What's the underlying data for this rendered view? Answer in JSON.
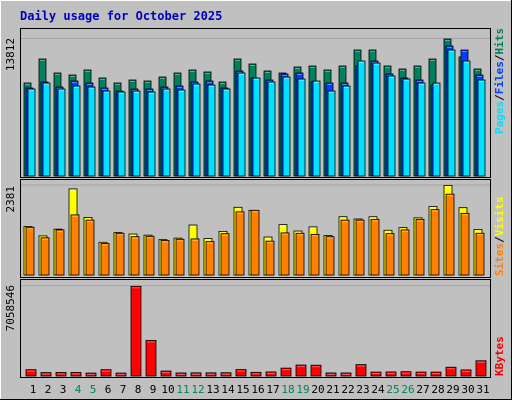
{
  "colors": {
    "background": "#c0c0c0",
    "title": "#0000c0",
    "hits": "#00805c",
    "files": "#0040ff",
    "pages": "#00e0ff",
    "visits": "#ffff00",
    "sites": "#ff8000",
    "kbytes": "#ff0000",
    "weekend_day": "#00805c",
    "weekday": "#000000"
  },
  "chart_data": {
    "type": "bar",
    "title": "Daily usage for October 2025",
    "days": [
      "1",
      "2",
      "3",
      "4",
      "5",
      "6",
      "7",
      "8",
      "9",
      "10",
      "11",
      "12",
      "13",
      "14",
      "15",
      "16",
      "17",
      "18",
      "19",
      "20",
      "21",
      "22",
      "23",
      "24",
      "25",
      "26",
      "27",
      "28",
      "29",
      "30",
      "31"
    ],
    "weekend_days": [
      "4",
      "5",
      "11",
      "12",
      "18",
      "19",
      "25",
      "26"
    ],
    "panels": [
      {
        "name": "hits-files-pages",
        "y_label": "13812",
        "legend": [
          "Pages",
          "/",
          "Files",
          "/",
          "Hits"
        ],
        "ylim": [
          0,
          14600
        ],
        "series": [
          {
            "name": "Hits",
            "values": [
              9300,
              11700,
              10300,
              10100,
              10600,
              9800,
              9300,
              9600,
              9500,
              9900,
              10300,
              10600,
              10400,
              9400,
              11700,
              11200,
              10500,
              10300,
              10900,
              11000,
              10600,
              11000,
              12600,
              12600,
              11000,
              10700,
              11000,
              11700,
              13700,
              11900,
              10700
            ]
          },
          {
            "name": "Files",
            "values": [
              8800,
              9400,
              8900,
              9500,
              9300,
              8800,
              8500,
              8700,
              8700,
              8900,
              9000,
              9400,
              9500,
              8800,
              10500,
              9800,
              9600,
              10200,
              10300,
              9400,
              9300,
              9300,
              11000,
              11500,
              10200,
              9800,
              9600,
              9100,
              13000,
              12600,
              10100
            ]
          },
          {
            "name": "Pages",
            "values": [
              8700,
              9300,
              8700,
              9000,
              8900,
              8500,
              8400,
              8500,
              8400,
              8700,
              8600,
              9200,
              9100,
              8700,
              10300,
              9800,
              9400,
              9900,
              9700,
              9500,
              8500,
              9000,
              11500,
              11300,
              10000,
              9700,
              9300,
              9300,
              12600,
              11500,
              9600
            ]
          }
        ]
      },
      {
        "name": "visits-sites",
        "y_label": "2381",
        "legend": [
          "Sites",
          "/",
          "Visits"
        ],
        "ylim": [
          0,
          2500
        ],
        "series": [
          {
            "name": "Visits",
            "values": [
              1290,
              1040,
              1220,
              2290,
              1530,
              870,
              1130,
              1090,
              1060,
              940,
              980,
              1330,
              970,
              1160,
              1800,
              1720,
              1010,
              1340,
              1170,
              1280,
              1050,
              1550,
              1490,
              1550,
              1190,
              1260,
              1520,
              1820,
              2380,
              1790,
              1210
            ]
          },
          {
            "name": "Sites",
            "values": [
              1270,
              990,
              1200,
              1600,
              1460,
              840,
              1110,
              1020,
              1030,
              920,
              950,
              960,
              890,
              1100,
              1680,
              1720,
              900,
              1120,
              1110,
              1080,
              1020,
              1460,
              1460,
              1480,
              1100,
              1200,
              1480,
              1740,
              2150,
              1640,
              1110
            ]
          }
        ]
      },
      {
        "name": "kbytes",
        "y_label": "7058546",
        "legend": [
          "KBytes"
        ],
        "ylim": [
          0,
          7400000
        ],
        "series": [
          {
            "name": "KBytes",
            "values": [
              500000,
              270000,
              280000,
              280000,
              230000,
              500000,
              230000,
              7058546,
              2800000,
              390000,
              240000,
              250000,
              250000,
              260000,
              510000,
              290000,
              320000,
              620000,
              860000,
              850000,
              240000,
              240000,
              900000,
              310000,
              320000,
              340000,
              310000,
              310000,
              690000,
              480000,
              1200000
            ]
          }
        ]
      }
    ]
  }
}
